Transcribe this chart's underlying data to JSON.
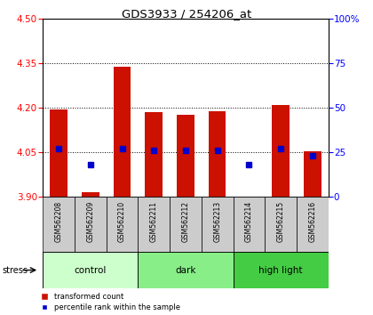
{
  "title": "GDS3933 / 254206_at",
  "samples": [
    "GSM562208",
    "GSM562209",
    "GSM562210",
    "GSM562211",
    "GSM562212",
    "GSM562213",
    "GSM562214",
    "GSM562215",
    "GSM562216"
  ],
  "bar_values": [
    4.195,
    3.915,
    4.34,
    4.185,
    4.178,
    4.19,
    3.902,
    4.21,
    4.055
  ],
  "bar_base": 3.9,
  "percentile_values": [
    27,
    18,
    27,
    26,
    26,
    26,
    18,
    27,
    23
  ],
  "groups": [
    {
      "label": "control",
      "indices": [
        0,
        1,
        2
      ],
      "color": "#ccffcc"
    },
    {
      "label": "dark",
      "indices": [
        3,
        4,
        5
      ],
      "color": "#88ee88"
    },
    {
      "label": "high light",
      "indices": [
        6,
        7,
        8
      ],
      "color": "#44cc44"
    }
  ],
  "ylim": [
    3.9,
    4.5
  ],
  "yticks": [
    3.9,
    4.05,
    4.2,
    4.35,
    4.5
  ],
  "right_yticks": [
    0,
    25,
    50,
    75,
    100
  ],
  "right_ylim": [
    0,
    100
  ],
  "bar_color": "#cc1100",
  "dot_color": "#0000cc",
  "bar_width": 0.55,
  "bg_color": "#ffffff",
  "sample_bg": "#cccccc",
  "legend_labels": [
    "transformed count",
    "percentile rank within the sample"
  ]
}
